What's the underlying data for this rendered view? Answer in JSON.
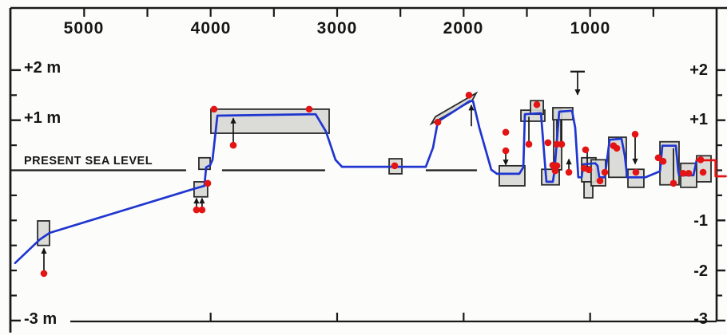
{
  "figure": {
    "description": "Relative sea-level curve for the last ~5500 years with dated uncertainty boxes and sample points"
  },
  "labels": {
    "top": [
      "5000",
      "4000",
      "3000",
      "2000",
      "1000"
    ],
    "left": [
      "+2 m",
      "+1 m",
      "PRESENT SEA LEVEL",
      "-3 m"
    ],
    "right": [
      "+2",
      "+1",
      "-1",
      "-2",
      "-3"
    ]
  },
  "colors": {
    "curve_blue": "#1f35cf",
    "curve_red": "#e41414",
    "point_red": "#e41414",
    "box_fill": "#d7d7d4",
    "box_stroke": "#2b2b2b",
    "axis": "#1a1a1a",
    "background": "#fcfcfb"
  },
  "chart_data": {
    "type": "line",
    "title": "",
    "xlabel": "",
    "ylabel": "",
    "x_axis": {
      "unit": "years BP",
      "direction": "right-to-left (old to young)",
      "range": [
        5600,
        -80
      ],
      "ticks_top": [
        5000,
        4500,
        4000,
        3500,
        3000,
        2500,
        2000,
        1500,
        1000,
        500
      ],
      "ticks_top_labeled": [
        5000,
        4000,
        3000,
        2000,
        1000
      ],
      "ticks_bottom": [
        4000,
        3000,
        2000,
        1000
      ]
    },
    "y_axis": {
      "unit": "m relative to present sea level",
      "range": [
        -3,
        2.6
      ],
      "ticks_left_major": [
        2,
        1,
        -3
      ],
      "ticks_left_minor": [
        1.5,
        0.5,
        -0.5,
        -1,
        -1.5,
        -2,
        -2.5
      ],
      "ticks_right_major": [
        2,
        1,
        -1,
        -2,
        -3
      ],
      "ticks_right_minor": [
        1.5,
        0.5,
        0,
        -0.5,
        -1.5,
        -2.5
      ],
      "zero_label": "PRESENT SEA LEVEL"
    },
    "series": [
      {
        "name": "reconstructed-sea-level-curve",
        "color_key": "curve_blue",
        "points_yr_m": [
          [
            5545,
            -1.85
          ],
          [
            5350,
            -1.38
          ],
          [
            5274,
            -1.25
          ],
          [
            4131,
            -0.37
          ],
          [
            4049,
            -0.31
          ],
          [
            4036,
            0.06
          ],
          [
            4004,
            0.1
          ],
          [
            3985,
            0.21
          ],
          [
            3947,
            1.09
          ],
          [
            3170,
            1.12
          ],
          [
            3088,
            0.77
          ],
          [
            3013,
            0.21
          ],
          [
            2962,
            0.07
          ],
          [
            2299,
            0.07
          ],
          [
            2242,
            0.45
          ],
          [
            2204,
            0.97
          ],
          [
            1952,
            1.38
          ],
          [
            1926,
            1.38
          ],
          [
            1876,
            0.85
          ],
          [
            1781,
            0.01
          ],
          [
            1737,
            -0.07
          ],
          [
            1560,
            -0.07
          ],
          [
            1528,
            0.06
          ],
          [
            1516,
            1.12
          ],
          [
            1389,
            1.14
          ],
          [
            1352,
            -0.02
          ],
          [
            1345,
            -0.23
          ],
          [
            1295,
            -0.23
          ],
          [
            1282,
            -0.02
          ],
          [
            1244,
            1.17
          ],
          [
            1143,
            1.19
          ],
          [
            1118,
            0.85
          ],
          [
            1093,
            -0.14
          ],
          [
            1067,
            -0.14
          ],
          [
            1055,
            0.12
          ],
          [
            960,
            0.14
          ],
          [
            941,
            0.09
          ],
          [
            928,
            -0.14
          ],
          [
            884,
            -0.14
          ],
          [
            846,
            0.61
          ],
          [
            752,
            0.63
          ],
          [
            726,
            0.29
          ],
          [
            707,
            -0.14
          ],
          [
            562,
            -0.14
          ],
          [
            448,
            -0.02
          ],
          [
            429,
            0.49
          ],
          [
            322,
            0.49
          ],
          [
            303,
            -0.02
          ],
          [
            297,
            -0.1
          ],
          [
            183,
            -0.1
          ],
          [
            158,
            0.2
          ]
        ]
      },
      {
        "name": "recent-sea-level-curve",
        "color_key": "curve_red",
        "points_yr_m": [
          [
            158,
            0.2
          ],
          [
            8,
            0.2
          ],
          [
            8,
            -0.12
          ],
          [
            -72,
            -0.12
          ]
        ]
      }
    ],
    "error_boxes_yr_m": [
      [
        5368,
        5274,
        -1.01,
        -1.5
      ],
      [
        4131,
        4024,
        -0.23,
        -0.53
      ],
      [
        4093,
        4004,
        0.25,
        0.02
      ],
      [
        3998,
        3063,
        1.22,
        0.74
      ],
      [
        2589,
        2488,
        0.23,
        -0.07
      ],
      [
        1718,
        1516,
        0.09,
        -0.31
      ],
      [
        1547,
        1358,
        1.2,
        0.98
      ],
      [
        1471,
        1370,
        1.39,
        1.12
      ],
      [
        1383,
        1244,
        0.02,
        -0.29
      ],
      [
        1288,
        1225,
        1.22,
        0.01
      ],
      [
        1295,
        1137,
        1.25,
        1.01
      ],
      [
        1067,
        954,
        0.25,
        -0.23
      ],
      [
        1048,
        979,
        -0.23,
        -0.55
      ],
      [
        992,
        878,
        0.21,
        -0.31
      ],
      [
        853,
        714,
        0.66,
        -0.14
      ],
      [
        701,
        575,
        0.02,
        -0.34
      ],
      [
        448,
        297,
        0.57,
        -0.29
      ],
      [
        284,
        158,
        0.14,
        -0.34
      ],
      [
        158,
        44,
        0.29,
        -0.23
      ]
    ],
    "tilted_box_yr_m": [
      [
        2255,
        0.93
      ],
      [
        2223,
        1.07
      ],
      [
        1901,
        1.54
      ],
      [
        1933,
        1.39
      ]
    ],
    "data_points_yr_m": [
      [
        5318,
        -2.06
      ],
      [
        4112,
        -0.79
      ],
      [
        4068,
        -0.79
      ],
      [
        4023,
        -0.26
      ],
      [
        3973,
        1.22
      ],
      [
        3221,
        1.22
      ],
      [
        3821,
        0.5
      ],
      [
        2545,
        0.09
      ],
      [
        2204,
        0.96
      ],
      [
        1958,
        1.5
      ],
      [
        1667,
        0.76
      ],
      [
        1667,
        0.39
      ],
      [
        1484,
        0.52
      ],
      [
        1421,
        1.31
      ],
      [
        1333,
        0.55
      ],
      [
        1263,
        0.52
      ],
      [
        1225,
        0.52
      ],
      [
        1295,
        0.1
      ],
      [
        1263,
        0.09
      ],
      [
        1276,
        -0.01
      ],
      [
        1168,
        -0.04
      ],
      [
        1036,
        0.41
      ],
      [
        1048,
        0.04
      ],
      [
        1010,
        0.01
      ],
      [
        922,
        -0.21
      ],
      [
        884,
        -0.04
      ],
      [
        815,
        0.49
      ],
      [
        789,
        0.44
      ],
      [
        644,
        0.72
      ],
      [
        638,
        -0.04
      ],
      [
        461,
        0.25
      ],
      [
        423,
        0.18
      ],
      [
        341,
        -0.26
      ],
      [
        265,
        -0.06
      ],
      [
        221,
        -0.06
      ],
      [
        126,
        0.21
      ],
      [
        107,
        -0.04
      ]
    ],
    "arrows_yr_m": [
      {
        "x": 5318,
        "tail": -2.01,
        "head": -1.56,
        "dir": "up"
      },
      {
        "x": 4112,
        "tail": -0.76,
        "head": -0.56,
        "dir": "up"
      },
      {
        "x": 4068,
        "tail": -0.76,
        "head": -0.56,
        "dir": "up"
      },
      {
        "x": 3821,
        "tail": 0.56,
        "head": 1.04,
        "dir": "up"
      },
      {
        "x": 1939,
        "tail": 0.88,
        "head": 1.3,
        "dir": "up"
      },
      {
        "x": 1099,
        "tail": 1.97,
        "head": 1.51,
        "dir": "down",
        "tbar": true
      },
      {
        "x": 1667,
        "tail": 0.33,
        "head": 0.11,
        "dir": "down"
      },
      {
        "x": 1484,
        "tail": 1.07,
        "head": 0.55,
        "dir": "none"
      },
      {
        "x": 1263,
        "tail": 1.0,
        "head": 0.55,
        "dir": "none"
      },
      {
        "x": 1231,
        "tail": 1.0,
        "head": 0.55,
        "dir": "none"
      },
      {
        "x": 1168,
        "tail": 0.02,
        "head": 0.22,
        "dir": "up"
      },
      {
        "x": 1023,
        "tail": 0.36,
        "head": -0.02,
        "dir": "down"
      },
      {
        "x": 644,
        "tail": 0.66,
        "head": 0.13,
        "dir": "down"
      },
      {
        "x": 341,
        "tail": 0.44,
        "head": -0.22,
        "dir": "none"
      }
    ],
    "sea_level_line_segments_yr": [
      [
        5583,
        4194
      ],
      [
        3910,
        3095
      ],
      [
        2299,
        1895
      ]
    ],
    "legend_position": "none",
    "grid": false
  }
}
